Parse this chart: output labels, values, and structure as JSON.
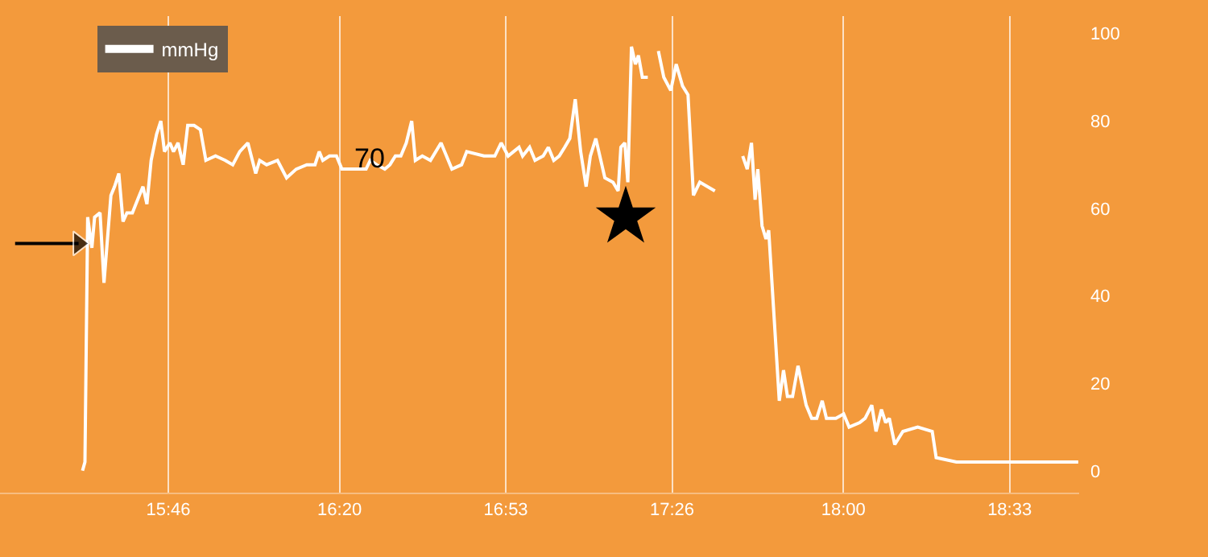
{
  "chart_data": {
    "type": "line",
    "x": [
      15.483,
      15.491,
      15.5,
      15.514,
      15.523,
      15.541,
      15.554,
      15.577,
      15.589,
      15.603,
      15.617,
      15.63,
      15.648,
      15.671,
      15.683,
      15.696,
      15.71,
      15.728,
      15.742,
      15.754,
      15.772,
      15.784,
      15.799,
      15.816,
      15.831,
      15.852,
      15.873,
      15.891,
      15.923,
      15.955,
      15.98,
      16.003,
      16.03,
      16.056,
      16.069,
      16.092,
      16.128,
      16.158,
      16.19,
      16.225,
      16.252,
      16.266,
      16.278,
      16.3,
      16.323,
      16.341,
      16.376,
      16.421,
      16.435,
      16.456,
      16.483,
      16.5,
      16.518,
      16.536,
      16.554,
      16.572,
      16.584,
      16.607,
      16.634,
      16.669,
      16.705,
      16.737,
      16.754,
      16.811,
      16.847,
      16.868,
      16.891,
      16.909,
      16.927,
      16.939,
      16.962,
      16.98,
      17.007,
      17.024,
      17.042,
      17.06,
      17.078,
      17.095,
      17.113,
      17.131,
      17.149,
      17.163,
      17.181,
      17.211,
      17.238,
      17.255,
      17.264,
      17.277,
      17.287,
      17.299,
      17.312,
      17.322,
      17.335,
      17.353,
      17.356,
      17.376,
      17.388,
      17.406,
      17.429,
      17.447,
      17.468,
      17.486,
      17.504,
      17.525,
      17.575,
      17.596,
      17.616,
      17.628,
      17.637,
      17.655,
      17.667,
      17.682,
      17.696,
      17.708,
      17.717,
      17.731,
      17.744,
      17.753,
      17.788,
      17.802,
      17.815,
      17.832,
      17.85,
      17.877,
      17.895,
      17.912,
      17.93,
      17.944,
      17.975,
      18.001,
      18.019,
      18.054,
      18.072,
      18.094,
      18.108,
      18.126,
      18.14,
      18.152,
      18.17,
      18.197,
      18.246,
      18.294,
      18.307,
      18.374,
      18.777
    ],
    "series": [
      {
        "name": "mmHg",
        "color": "#ffffff",
        "values": [
          0,
          2,
          58,
          51,
          58,
          59,
          43,
          63,
          65,
          68,
          57,
          59,
          59,
          63,
          65,
          61,
          71,
          77,
          80,
          73,
          75,
          73,
          75,
          70,
          79,
          79,
          78,
          71,
          72,
          71,
          70,
          73,
          75,
          68,
          71,
          70,
          71,
          67,
          69,
          70,
          70,
          73,
          71,
          72,
          72,
          69,
          69,
          69,
          71,
          70,
          69,
          70,
          72,
          72,
          75,
          80,
          71,
          72,
          71,
          75,
          69,
          70,
          73,
          72,
          72,
          75,
          72,
          73,
          74,
          72,
          74,
          71,
          72,
          74,
          71,
          72,
          74,
          76,
          85,
          73,
          65,
          72,
          76,
          67,
          66,
          64,
          74,
          75,
          66,
          97,
          93,
          95,
          90,
          90,
          null,
          null,
          96,
          90,
          87,
          93,
          88,
          86,
          63,
          66,
          64,
          null,
          null,
          null,
          null,
          null,
          72,
          69,
          75,
          62,
          69,
          56,
          53,
          55,
          16,
          23,
          17,
          17,
          24,
          15,
          12,
          12,
          16,
          12,
          12,
          13,
          10,
          11,
          12,
          15,
          9,
          14,
          11,
          12,
          6,
          9,
          10,
          9,
          3,
          2,
          2
        ]
      },
      {
        "type": "scatter",
        "marker": "star",
        "color": "#000000",
        "x": [
          17.28
        ],
        "values": [
          58
        ]
      },
      {
        "type": "line",
        "marker": "triangle",
        "color": "#000000",
        "x": [
          15.26,
          15.47
        ],
        "values": [
          52,
          52
        ]
      }
    ],
    "xlim": [
      15.21,
      18.78
    ],
    "xticks": [
      {
        "value": 15.7667,
        "label": "15:46"
      },
      {
        "value": 16.3333,
        "label": "16:20"
      },
      {
        "value": 16.8833,
        "label": "16:53"
      },
      {
        "value": 17.4333,
        "label": "17:26"
      },
      {
        "value": 18.0,
        "label": "18:00"
      },
      {
        "value": 18.55,
        "label": "18:33"
      }
    ],
    "ylim": [
      -5,
      104
    ],
    "yticks": [
      0,
      20,
      40,
      60,
      80,
      100
    ],
    "grid": "x",
    "legend": "top left",
    "marker": "none",
    "line_style": "solid",
    "annotations": [
      "70"
    ]
  }
}
